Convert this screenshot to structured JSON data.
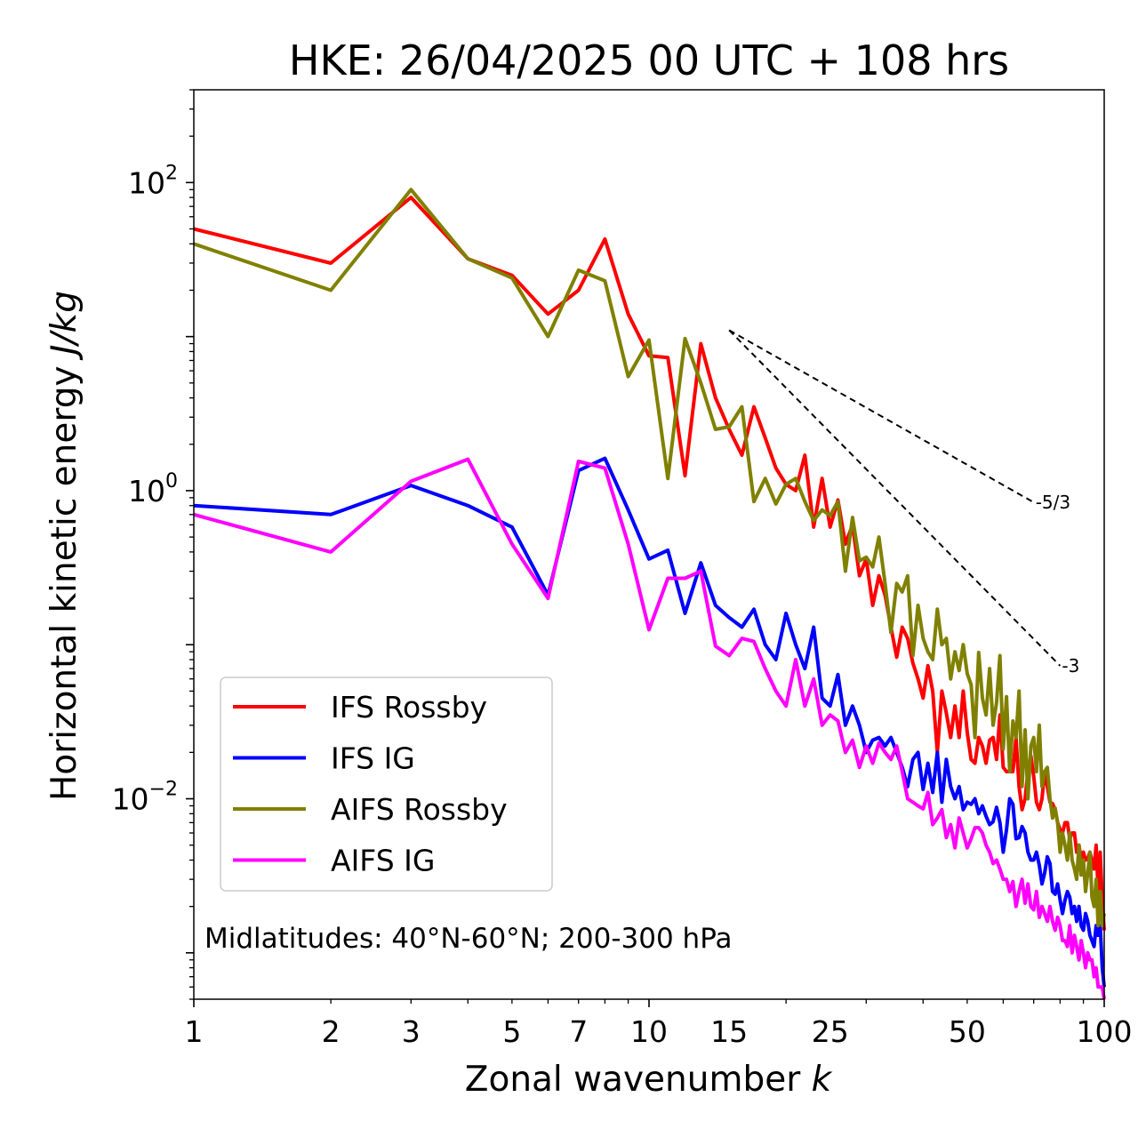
{
  "chart_data": {
    "type": "line",
    "title": "HKE: 26/04/2025 00 UTC + 108 hrs",
    "xlabel": "Zonal wavenumber",
    "xlabel_symbol": "k",
    "ylabel": "Horizontal kinetic energy",
    "ylabel_units": "J/kg",
    "xscale": "log",
    "yscale": "log",
    "xlim": [
      1,
      100
    ],
    "ylim": [
      0.0005,
      400
    ],
    "x_ticks": [
      {
        "v": 1,
        "label": "1"
      },
      {
        "v": 2,
        "label": "2"
      },
      {
        "v": 3,
        "label": "3"
      },
      {
        "v": 5,
        "label": "5"
      },
      {
        "v": 7,
        "label": "7"
      },
      {
        "v": 10,
        "label": "10"
      },
      {
        "v": 15,
        "label": "15"
      },
      {
        "v": 25,
        "label": "25"
      },
      {
        "v": 50,
        "label": "50"
      },
      {
        "v": 100,
        "label": "100"
      }
    ],
    "y_ticks": [
      {
        "v": 100,
        "base": "10",
        "exp": "2"
      },
      {
        "v": 1,
        "base": "10",
        "exp": "0"
      },
      {
        "v": 0.01,
        "base": "10",
        "exp": "−2"
      }
    ],
    "legend_position": "lower-left",
    "annotation": "Midlatitudes: 40°N-60°N; 200-300 hPa",
    "reference_slopes": [
      {
        "label": "-5/3",
        "x": [
          15,
          70
        ],
        "y": [
          11.0,
          0.84
        ]
      },
      {
        "label": "-3",
        "x": [
          15,
          80
        ],
        "y": [
          11.0,
          0.073
        ]
      }
    ],
    "series": [
      {
        "name": "IFS Rossby",
        "color": "#ff0000",
        "values": [
          50,
          30,
          80,
          32,
          25,
          14,
          20,
          43,
          14,
          7.5,
          7.3,
          1.25,
          9.0,
          4.0,
          2.5,
          1.7,
          3.5,
          2.2,
          1.4,
          1.1,
          1.0,
          1.7,
          0.58,
          1.2,
          0.58,
          0.87,
          0.45,
          0.6,
          0.28,
          0.36,
          0.18,
          0.28,
          0.21,
          0.13,
          0.083,
          0.13,
          0.11,
          0.076,
          0.06,
          0.045,
          0.073,
          0.05,
          0.02,
          0.05,
          0.036,
          0.025,
          0.04,
          0.025,
          0.05,
          0.027,
          0.018,
          0.017,
          0.025,
          0.022,
          0.017,
          0.024,
          0.025,
          0.018,
          0.035,
          0.016,
          0.015,
          0.015,
          0.015,
          0.025,
          0.012,
          0.0085,
          0.01,
          0.015,
          0.019,
          0.014,
          0.0095,
          0.0085,
          0.01,
          0.015,
          0.012,
          0.0095,
          0.0093,
          0.0085,
          0.007,
          0.0063,
          0.006,
          0.007,
          0.007,
          0.0055,
          0.006,
          0.006,
          0.0045,
          0.005,
          0.004,
          0.0045,
          0.004,
          0.0041,
          0.0045,
          0.004,
          0.0035,
          0.005,
          0.0025,
          0.0045,
          0.0022,
          0.0014
        ]
      },
      {
        "name": "IFS IG",
        "color": "#0000ff",
        "values": [
          0.8,
          0.7,
          1.08,
          0.8,
          0.58,
          0.21,
          1.35,
          1.62,
          0.75,
          0.36,
          0.41,
          0.16,
          0.34,
          0.18,
          0.15,
          0.13,
          0.17,
          0.1,
          0.08,
          0.16,
          0.1,
          0.07,
          0.13,
          0.045,
          0.04,
          0.064,
          0.03,
          0.04,
          0.03,
          0.02,
          0.024,
          0.025,
          0.022,
          0.025,
          0.02,
          0.016,
          0.012,
          0.018,
          0.02,
          0.0115,
          0.017,
          0.011,
          0.02,
          0.0095,
          0.018,
          0.012,
          0.01,
          0.012,
          0.0085,
          0.0095,
          0.0092,
          0.01,
          0.008,
          0.009,
          0.0077,
          0.0068,
          0.0071,
          0.0088,
          0.007,
          0.0045,
          0.0063,
          0.01,
          0.0092,
          0.0055,
          0.0056,
          0.0066,
          0.006,
          0.0045,
          0.004,
          0.004,
          0.0045,
          0.0037,
          0.0028,
          0.0033,
          0.0042,
          0.0038,
          0.0025,
          0.0024,
          0.0028,
          0.0022,
          0.0018,
          0.0022,
          0.0025,
          0.0023,
          0.0018,
          0.002,
          0.0016,
          0.002,
          0.0015,
          0.0014,
          0.0018,
          0.0016,
          0.0013,
          0.0012,
          0.0011,
          0.0015,
          0.0013,
          0.0015,
          0.0008,
          0.0006
        ]
      },
      {
        "name": "AIFS Rossby",
        "color": "#808000",
        "values": [
          40,
          20,
          90,
          32,
          24,
          10,
          27,
          23,
          5.5,
          9.5,
          1.2,
          9.7,
          5.0,
          2.5,
          2.6,
          3.5,
          0.85,
          1.2,
          0.82,
          1.1,
          1.2,
          0.85,
          0.64,
          0.75,
          0.69,
          0.85,
          0.3,
          0.67,
          0.35,
          0.37,
          0.32,
          0.5,
          0.25,
          0.12,
          0.25,
          0.22,
          0.28,
          0.085,
          0.18,
          0.11,
          0.09,
          0.08,
          0.17,
          0.1,
          0.11,
          0.06,
          0.09,
          0.068,
          0.1,
          0.065,
          0.055,
          0.025,
          0.089,
          0.045,
          0.035,
          0.07,
          0.03,
          0.042,
          0.085,
          0.021,
          0.046,
          0.015,
          0.032,
          0.025,
          0.05,
          0.012,
          0.028,
          0.01,
          0.022,
          0.025,
          0.015,
          0.03,
          0.012,
          0.015,
          0.016,
          0.01,
          0.0075,
          0.0087,
          0.007,
          0.0045,
          0.006,
          0.005,
          0.004,
          0.006,
          0.004,
          0.0035,
          0.003,
          0.005,
          0.0032,
          0.004,
          0.0025,
          0.0033,
          0.0045,
          0.0023,
          0.002,
          0.003,
          0.0015,
          0.0025,
          0.0015,
          0.0018
        ]
      },
      {
        "name": "AIFS IG",
        "color": "#ff00ff",
        "values": [
          0.7,
          0.4,
          1.15,
          1.6,
          0.45,
          0.2,
          1.55,
          1.4,
          0.45,
          0.125,
          0.27,
          0.27,
          0.3,
          0.098,
          0.085,
          0.11,
          0.105,
          0.07,
          0.05,
          0.04,
          0.08,
          0.04,
          0.06,
          0.03,
          0.035,
          0.032,
          0.02,
          0.024,
          0.016,
          0.022,
          0.017,
          0.023,
          0.02,
          0.018,
          0.022,
          0.015,
          0.01,
          0.0095,
          0.009,
          0.0086,
          0.011,
          0.0068,
          0.0075,
          0.0085,
          0.0056,
          0.0068,
          0.0048,
          0.0075,
          0.006,
          0.0048,
          0.0055,
          0.0065,
          0.0065,
          0.006,
          0.005,
          0.0045,
          0.0038,
          0.004,
          0.0035,
          0.003,
          0.003,
          0.0025,
          0.0029,
          0.002,
          0.0025,
          0.003,
          0.0021,
          0.0028,
          0.002,
          0.0019,
          0.0025,
          0.0017,
          0.002,
          0.0018,
          0.0016,
          0.002,
          0.0016,
          0.0014,
          0.0017,
          0.0015,
          0.0012,
          0.0012,
          0.0011,
          0.0015,
          0.001,
          0.0013,
          0.0011,
          0.0009,
          0.0012,
          0.001,
          0.0008,
          0.001,
          0.0009,
          0.0009,
          0.0007,
          0.0008,
          0.0006,
          0.0006,
          0.0006,
          0.0005
        ]
      }
    ]
  }
}
